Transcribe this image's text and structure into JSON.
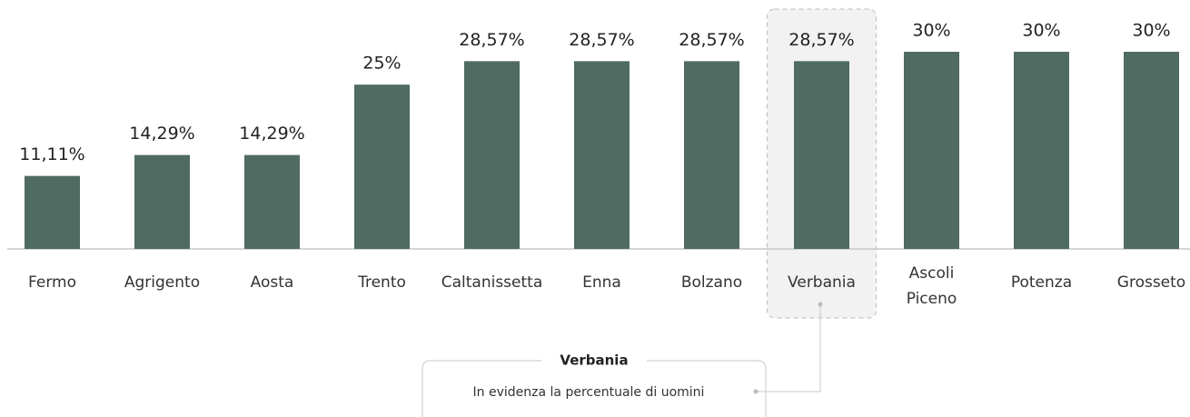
{
  "chart_data": {
    "type": "bar",
    "categories": [
      "Fermo",
      "Agrigento",
      "Aosta",
      "Trento",
      "Caltanissetta",
      "Enna",
      "Bolzano",
      "Verbania",
      "Ascoli Piceno",
      "Potenza",
      "Grosseto"
    ],
    "values": [
      11.11,
      14.29,
      14.29,
      25,
      28.57,
      28.57,
      28.57,
      28.57,
      30,
      30,
      30
    ],
    "value_labels": [
      "11,11%",
      "14,29%",
      "14,29%",
      "25%",
      "28,57%",
      "28,57%",
      "28,57%",
      "28,57%",
      "30%",
      "30%",
      "30%"
    ],
    "color": "#4f6b62",
    "highlight_index": 7,
    "annotation": {
      "title": "Verbania",
      "text": "In evidenza la percentuale di uomini"
    }
  }
}
